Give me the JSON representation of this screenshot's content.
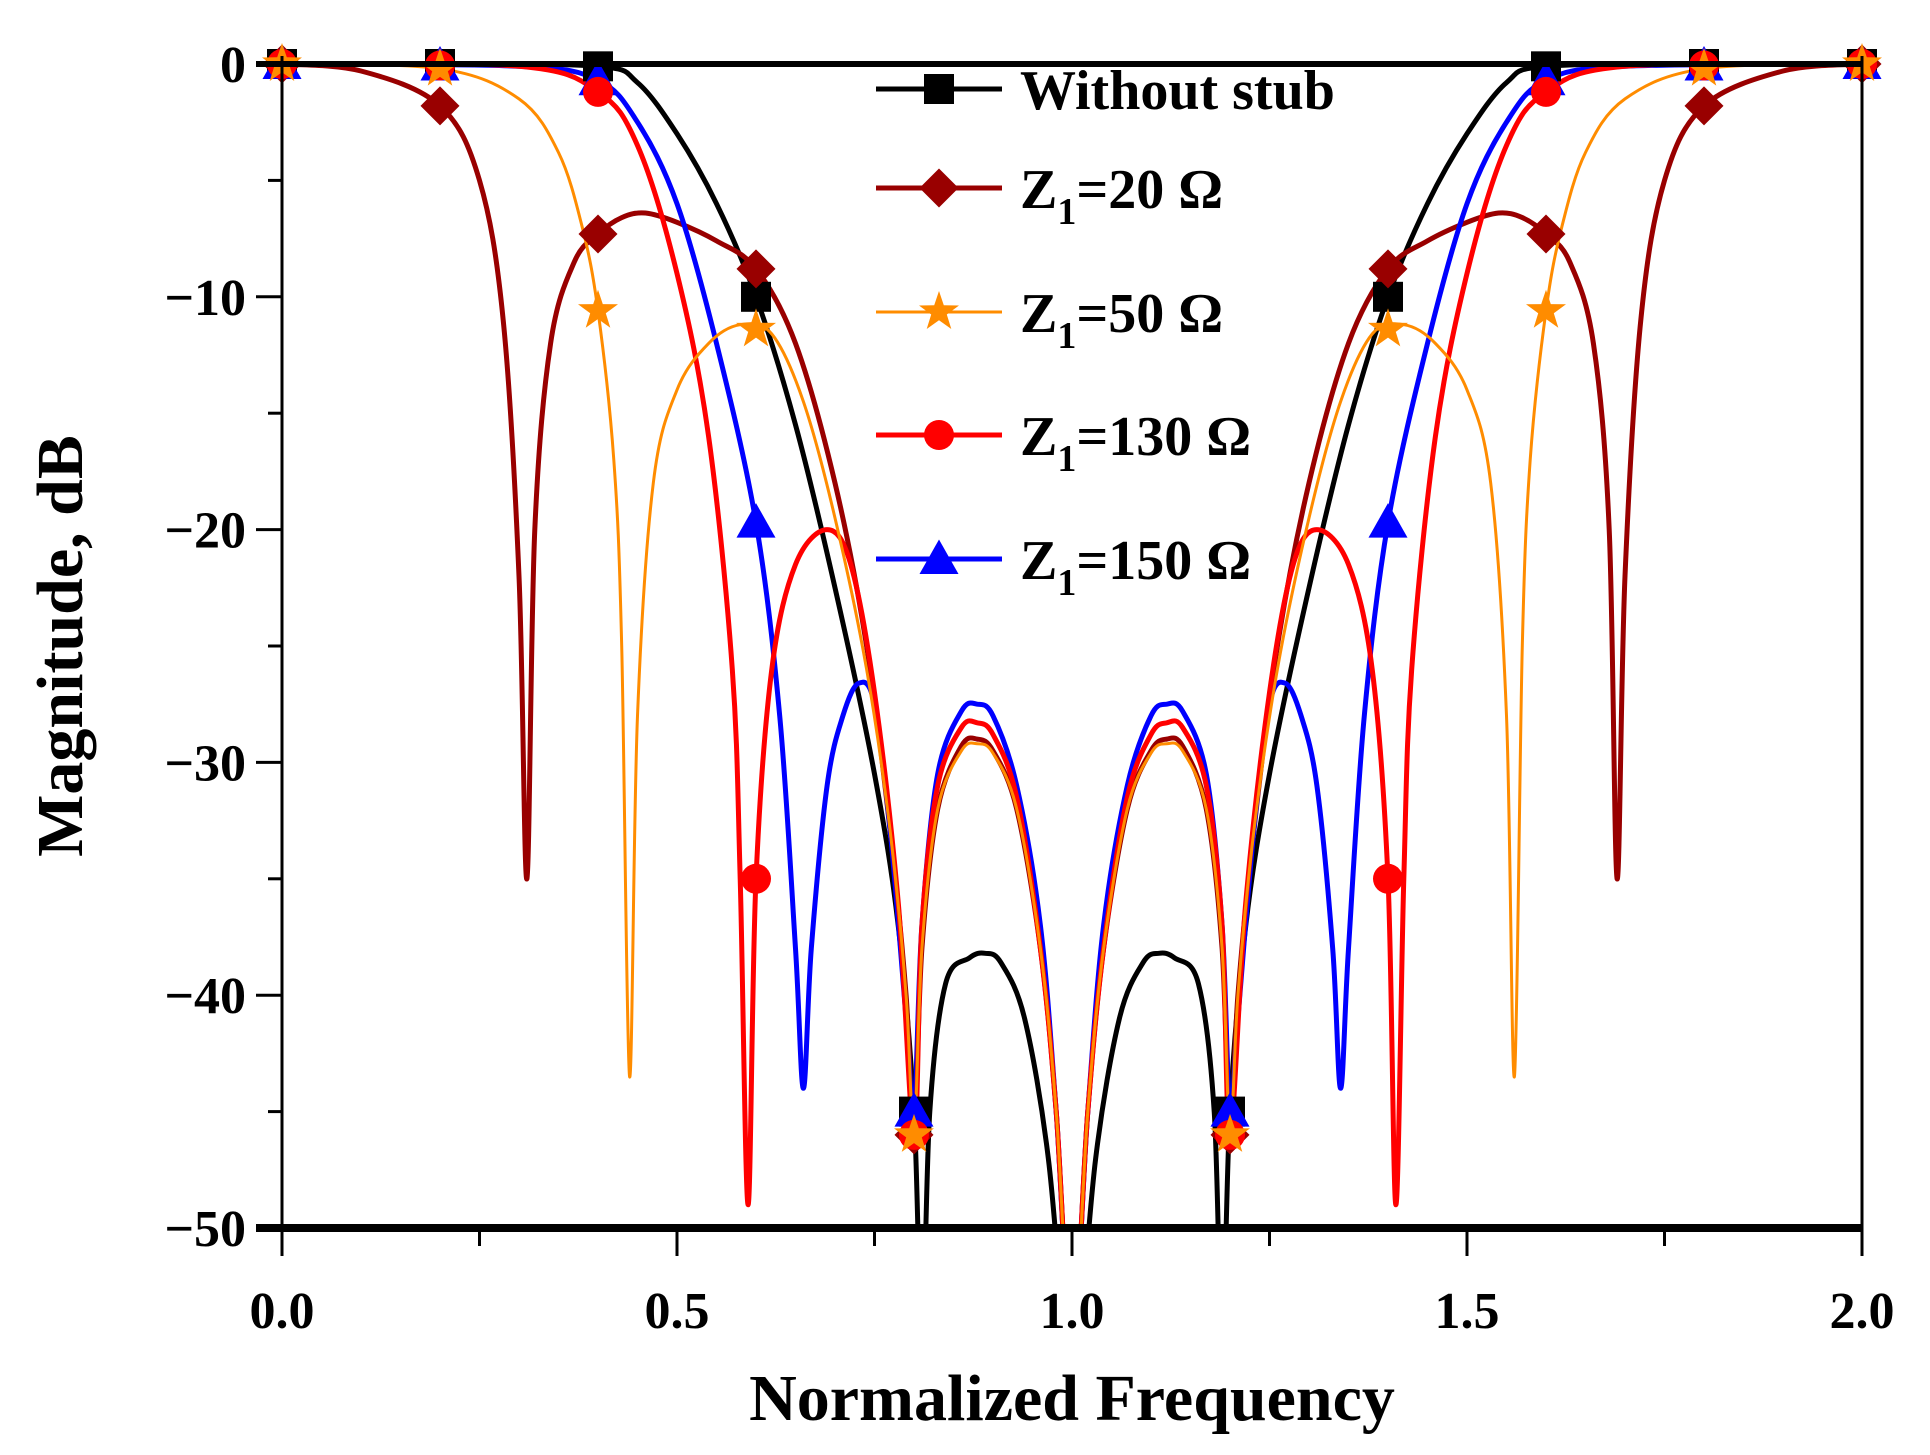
{
  "chart_data": {
    "type": "line",
    "title": "",
    "xlabel": "Normalized Frequency",
    "ylabel": "Magnitude, dB",
    "xlim": [
      0,
      2
    ],
    "ylim": [
      -50,
      0
    ],
    "x_ticks": [
      "0.0",
      "0.5",
      "1.0",
      "1.5",
      "2.0"
    ],
    "x_tick_values": [
      0,
      0.5,
      1,
      1.5,
      2
    ],
    "y_ticks": [
      "0",
      "−10",
      "−20",
      "−30",
      "−40",
      "−50"
    ],
    "y_tick_values": [
      0,
      -10,
      -20,
      -30,
      -40,
      -50
    ],
    "grid": false,
    "legend_position": "top-center",
    "symmetric_about": 1.0,
    "marker_x": [
      0,
      0.2,
      0.4,
      0.6,
      0.8,
      1.0,
      1.2,
      1.4,
      1.6,
      1.8,
      2.0
    ],
    "note": "each series lists the left half (0 to 1.0); the response mirrors about 1.0",
    "series": [
      {
        "name": "Without stub",
        "label_main": "Without stub",
        "label_sub": "",
        "label_tail": "",
        "color": "#000000",
        "marker": "square",
        "width": 5,
        "x": [
          0,
          0.2,
          0.4,
          0.45,
          0.5,
          0.55,
          0.6,
          0.65,
          0.7,
          0.75,
          0.78,
          0.8,
          0.81,
          0.82,
          0.84,
          0.87,
          0.89,
          0.91,
          0.94,
          0.97,
          0.99,
          1.0
        ],
        "y": [
          0,
          0,
          -0.1,
          -0.8,
          -3,
          -6,
          -10,
          -15.5,
          -22.5,
          -30.5,
          -37,
          -45,
          -55,
          -45,
          -39.5,
          -38.4,
          -38.2,
          -38.6,
          -41,
          -47,
          -55,
          -60
        ]
      },
      {
        "name": "Z1=20 Ω",
        "label_main": "Z",
        "label_sub": "1",
        "label_tail": "=20 Ω",
        "color": "#990000",
        "marker": "diamond",
        "width": 5,
        "x": [
          0,
          0.1,
          0.2,
          0.25,
          0.28,
          0.3,
          0.31,
          0.32,
          0.34,
          0.37,
          0.4,
          0.43,
          0.46,
          0.5,
          0.55,
          0.6,
          0.65,
          0.7,
          0.74,
          0.77,
          0.79,
          0.8,
          0.81,
          0.83,
          0.86,
          0.88,
          0.9,
          0.93,
          0.96,
          0.98,
          1.0
        ],
        "y": [
          0,
          -0.3,
          -1.8,
          -5,
          -11,
          -22,
          -35,
          -20,
          -12,
          -8.5,
          -7.3,
          -6.6,
          -6.4,
          -6.8,
          -7.6,
          -8.8,
          -12,
          -18,
          -25,
          -33,
          -40,
          -46,
          -38,
          -32,
          -29.3,
          -29,
          -29.5,
          -32,
          -38,
          -45,
          -55
        ]
      },
      {
        "name": "Z1=50 Ω",
        "label_main": "Z",
        "label_sub": "1",
        "label_tail": "=50 Ω",
        "color": "#FF8C00",
        "marker": "star",
        "width": 3,
        "x": [
          0,
          0.2,
          0.3,
          0.35,
          0.38,
          0.4,
          0.42,
          0.43,
          0.44,
          0.45,
          0.47,
          0.5,
          0.54,
          0.58,
          0.62,
          0.66,
          0.7,
          0.74,
          0.77,
          0.79,
          0.8,
          0.81,
          0.83,
          0.86,
          0.88,
          0.9,
          0.93,
          0.96,
          0.98,
          1.0
        ],
        "y": [
          0,
          -0.2,
          -1.5,
          -3.8,
          -7,
          -10.6,
          -17,
          -25,
          -43.5,
          -28,
          -18,
          -14,
          -12,
          -11.2,
          -11.6,
          -14.5,
          -19.5,
          -26,
          -33,
          -40,
          -46,
          -38,
          -32,
          -29.5,
          -29.2,
          -29.6,
          -32,
          -38,
          -45,
          -55
        ]
      },
      {
        "name": "Z1=130 Ω",
        "label_main": "Z",
        "label_sub": "1",
        "label_tail": "=130 Ω",
        "color": "#FF0000",
        "marker": "circle",
        "width": 5,
        "x": [
          0,
          0.3,
          0.4,
          0.45,
          0.5,
          0.54,
          0.57,
          0.58,
          0.59,
          0.6,
          0.62,
          0.65,
          0.69,
          0.72,
          0.75,
          0.78,
          0.8,
          0.81,
          0.83,
          0.86,
          0.88,
          0.9,
          0.93,
          0.96,
          0.98,
          1.0
        ],
        "y": [
          0,
          -0.1,
          -1.2,
          -3.5,
          -9,
          -16,
          -26,
          -35,
          -49,
          -35,
          -26,
          -21.5,
          -20,
          -21.5,
          -27,
          -36,
          -46,
          -37,
          -31,
          -28.5,
          -28.3,
          -28.8,
          -31.5,
          -38,
          -45,
          -55
        ]
      },
      {
        "name": "Z1=150 Ω",
        "label_main": "Z",
        "label_sub": "1",
        "label_tail": "=150 Ω",
        "color": "#0000FF",
        "marker": "triangle",
        "width": 5,
        "x": [
          0,
          0.3,
          0.4,
          0.45,
          0.5,
          0.55,
          0.6,
          0.63,
          0.65,
          0.66,
          0.67,
          0.69,
          0.71,
          0.73,
          0.75,
          0.77,
          0.79,
          0.8,
          0.81,
          0.83,
          0.86,
          0.88,
          0.9,
          0.93,
          0.96,
          0.98,
          1.0
        ],
        "y": [
          0,
          -0.1,
          -0.7,
          -2.5,
          -6,
          -12,
          -19.7,
          -28,
          -38,
          -44,
          -38,
          -31,
          -28,
          -26.6,
          -27.5,
          -33,
          -41,
          -45,
          -37,
          -30.5,
          -27.8,
          -27.5,
          -28,
          -31,
          -37,
          -45,
          -55
        ]
      }
    ]
  }
}
